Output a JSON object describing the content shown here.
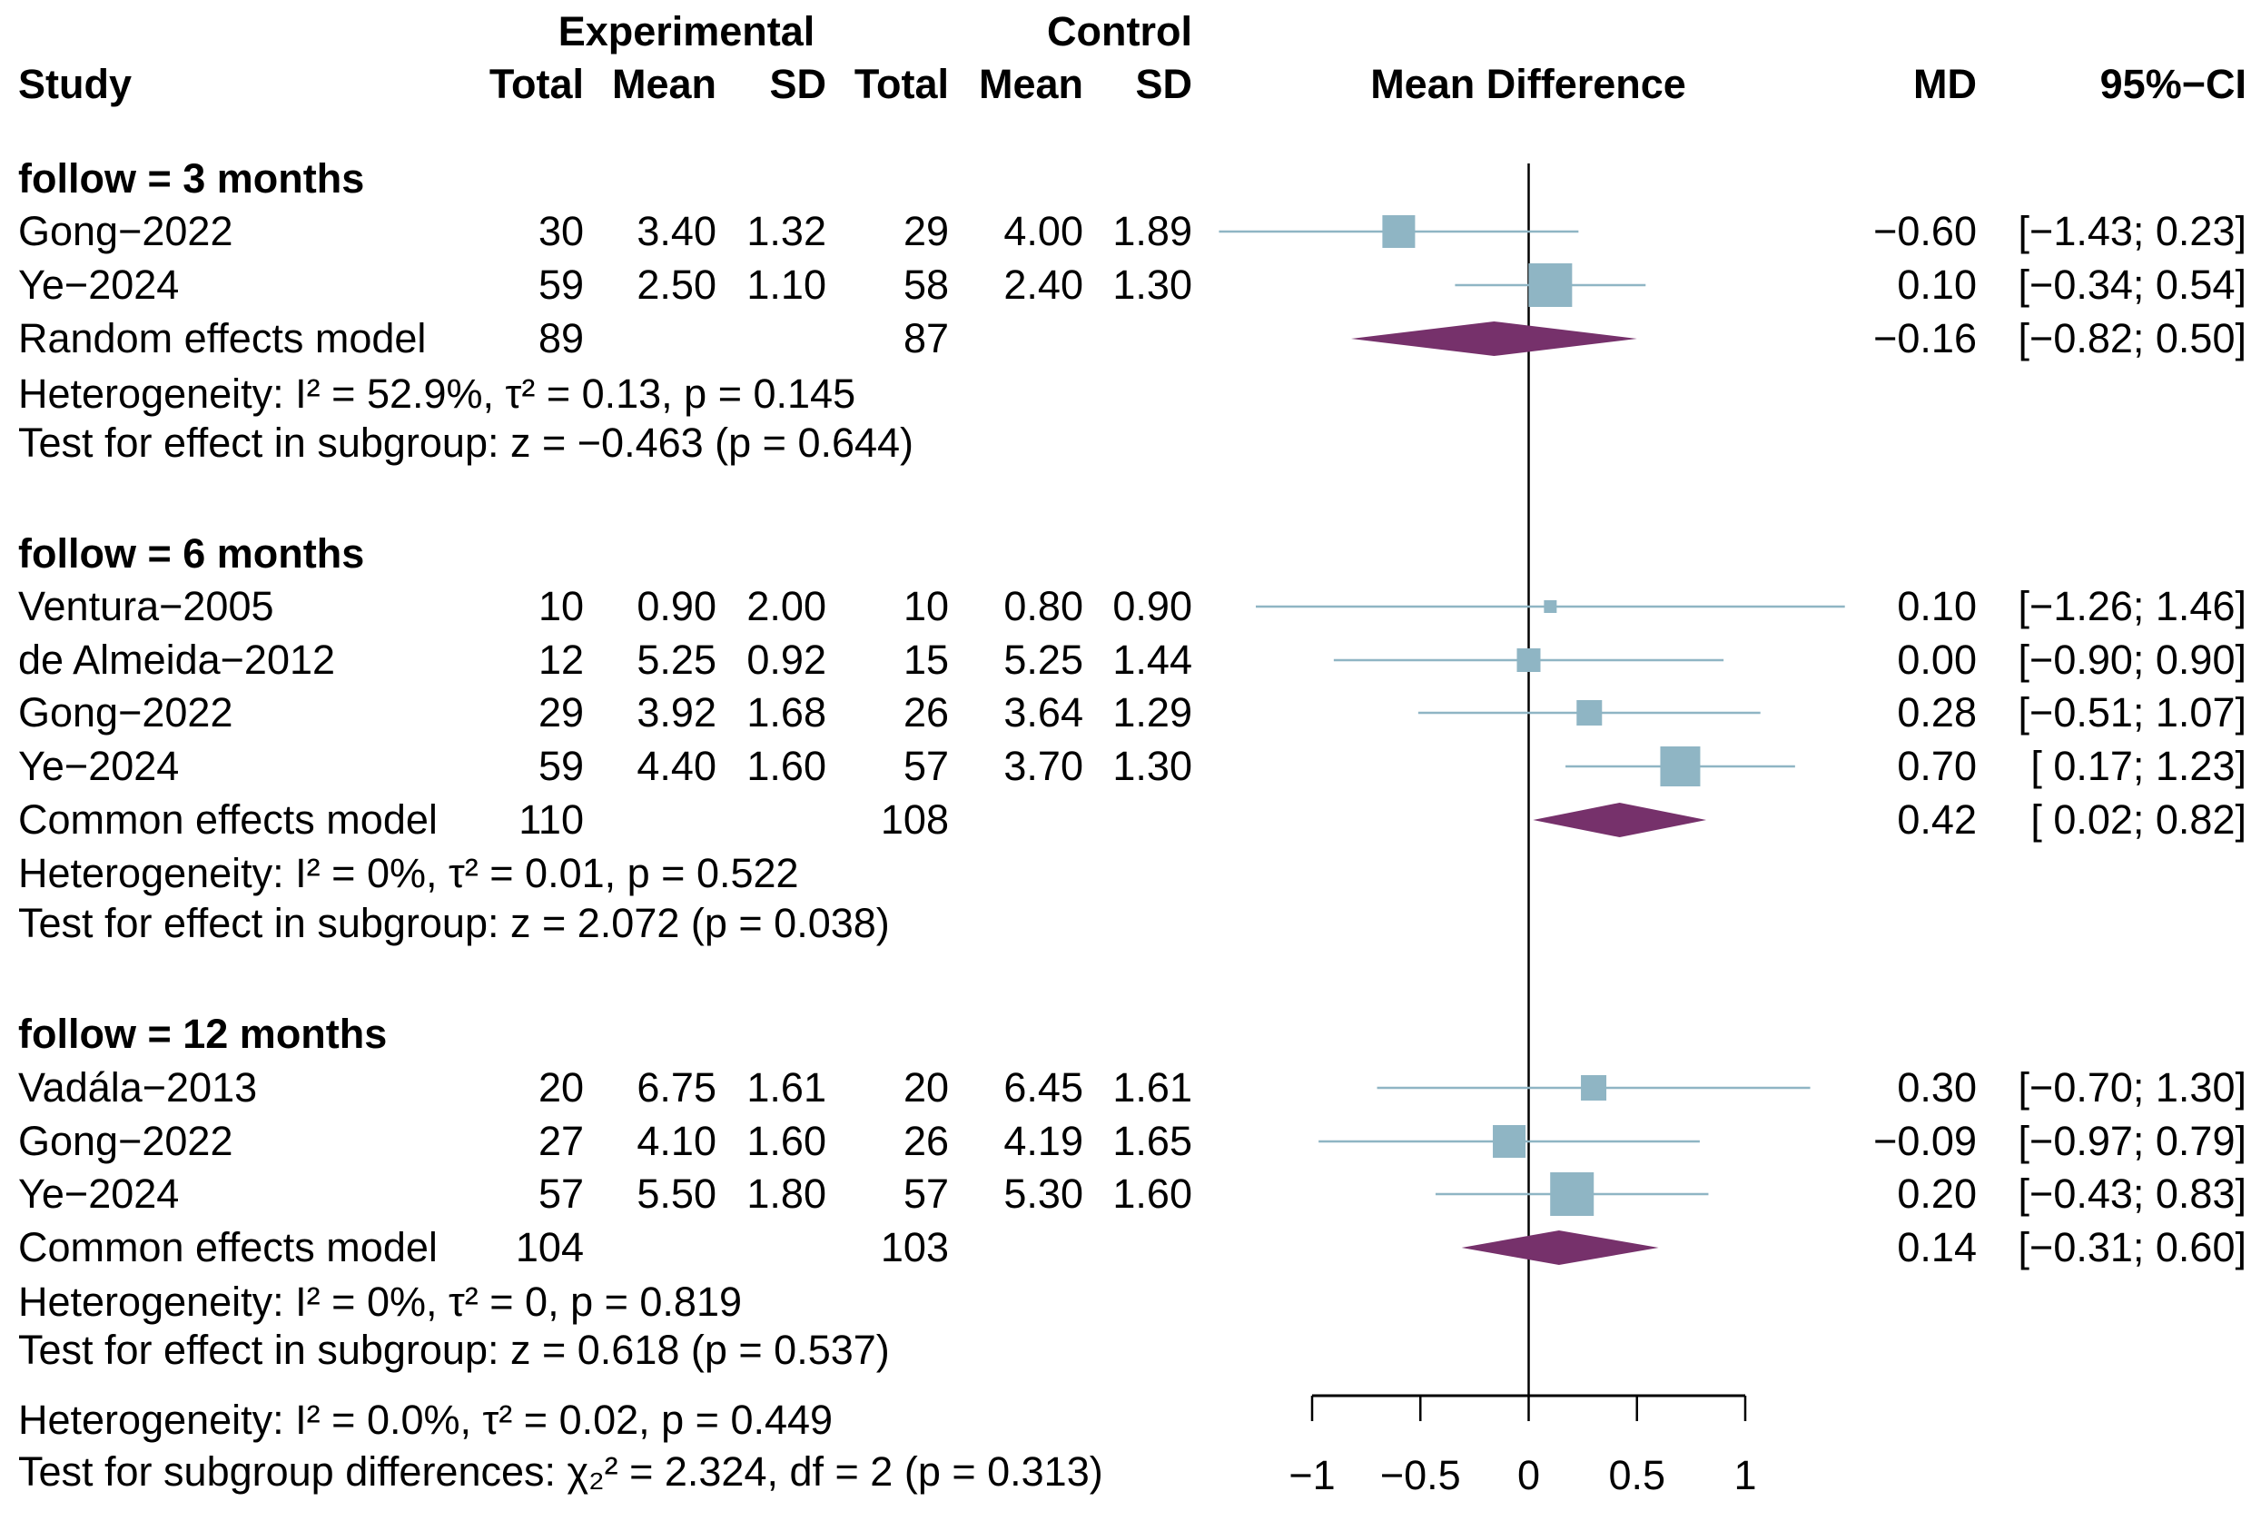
{
  "chart_data": {
    "type": "forest",
    "headers": {
      "study": "Study",
      "experimental": "Experimental",
      "control": "Control",
      "total": "Total",
      "mean": "Mean",
      "sd": "SD",
      "effect": "Mean Difference",
      "md": "MD",
      "ci": "95%−CI"
    },
    "xaxis": {
      "ticks": [
        -1,
        -0.5,
        0,
        0.5,
        1
      ],
      "tick_labels": [
        "−1",
        "−0.5",
        "0",
        "0.5",
        "1"
      ],
      "xlim": [
        -1,
        1
      ]
    },
    "colors": {
      "study": "#8fb5c4",
      "diamond": "#76316b",
      "line": "#8fb5c4"
    },
    "subgroups": [
      {
        "label": "follow = 3 months",
        "studies": [
          {
            "name": "Gong−2022",
            "e_total": "30",
            "e_mean": "3.40",
            "e_sd": "1.32",
            "c_total": "29",
            "c_mean": "4.00",
            "c_sd": "1.89",
            "md": -0.6,
            "lo": -1.43,
            "hi": 0.23,
            "md_text": "−0.60",
            "ci_text": "[−1.43; 0.23]"
          },
          {
            "name": "Ye−2024",
            "e_total": "59",
            "e_mean": "2.50",
            "e_sd": "1.10",
            "c_total": "58",
            "c_mean": "2.40",
            "c_sd": "1.30",
            "md": 0.1,
            "lo": -0.34,
            "hi": 0.54,
            "md_text": "0.10",
            "ci_text": "[−0.34; 0.54]"
          }
        ],
        "model": {
          "name": "Random effects model",
          "e_total": "89",
          "c_total": "87",
          "md": -0.16,
          "lo": -0.82,
          "hi": 0.5,
          "md_text": "−0.16",
          "ci_text": "[−0.82; 0.50]"
        },
        "heterogeneity": "Heterogeneity: I² = 52.9%,  τ² = 0.13, p = 0.145",
        "test": "Test for effect in subgroup: z = −0.463 (p = 0.644)"
      },
      {
        "label": "follow = 6 months",
        "studies": [
          {
            "name": "Ventura−2005",
            "e_total": "10",
            "e_mean": "0.90",
            "e_sd": "2.00",
            "c_total": "10",
            "c_mean": "0.80",
            "c_sd": "0.90",
            "md": 0.1,
            "lo": -1.26,
            "hi": 1.46,
            "md_text": "0.10",
            "ci_text": "[−1.26; 1.46]"
          },
          {
            "name": "de Almeida−2012",
            "e_total": "12",
            "e_mean": "5.25",
            "e_sd": "0.92",
            "c_total": "15",
            "c_mean": "5.25",
            "c_sd": "1.44",
            "md": 0.0,
            "lo": -0.9,
            "hi": 0.9,
            "md_text": "0.00",
            "ci_text": "[−0.90; 0.90]"
          },
          {
            "name": "Gong−2022",
            "e_total": "29",
            "e_mean": "3.92",
            "e_sd": "1.68",
            "c_total": "26",
            "c_mean": "3.64",
            "c_sd": "1.29",
            "md": 0.28,
            "lo": -0.51,
            "hi": 1.07,
            "md_text": "0.28",
            "ci_text": "[−0.51; 1.07]"
          },
          {
            "name": "Ye−2024",
            "e_total": "59",
            "e_mean": "4.40",
            "e_sd": "1.60",
            "c_total": "57",
            "c_mean": "3.70",
            "c_sd": "1.30",
            "md": 0.7,
            "lo": 0.17,
            "hi": 1.23,
            "md_text": "0.70",
            "ci_text": "[ 0.17; 1.23]"
          }
        ],
        "model": {
          "name": "Common effects model",
          "e_total": "110",
          "c_total": "108",
          "md": 0.42,
          "lo": 0.02,
          "hi": 0.82,
          "md_text": "0.42",
          "ci_text": "[ 0.02; 0.82]"
        },
        "heterogeneity": "Heterogeneity: I² = 0%,  τ² = 0.01, p = 0.522",
        "test": "Test for effect in subgroup: z = 2.072 (p = 0.038)"
      },
      {
        "label": "follow = 12 months",
        "studies": [
          {
            "name": "Vadála−2013",
            "e_total": "20",
            "e_mean": "6.75",
            "e_sd": "1.61",
            "c_total": "20",
            "c_mean": "6.45",
            "c_sd": "1.61",
            "md": 0.3,
            "lo": -0.7,
            "hi": 1.3,
            "md_text": "0.30",
            "ci_text": "[−0.70; 1.30]"
          },
          {
            "name": "Gong−2022",
            "e_total": "27",
            "e_mean": "4.10",
            "e_sd": "1.60",
            "c_total": "26",
            "c_mean": "4.19",
            "c_sd": "1.65",
            "md": -0.09,
            "lo": -0.97,
            "hi": 0.79,
            "md_text": "−0.09",
            "ci_text": "[−0.97; 0.79]"
          },
          {
            "name": "Ye−2024",
            "e_total": "57",
            "e_mean": "5.50",
            "e_sd": "1.80",
            "c_total": "57",
            "c_mean": "5.30",
            "c_sd": "1.60",
            "md": 0.2,
            "lo": -0.43,
            "hi": 0.83,
            "md_text": "0.20",
            "ci_text": "[−0.43; 0.83]"
          }
        ],
        "model": {
          "name": "Common effects model",
          "e_total": "104",
          "c_total": "103",
          "md": 0.14,
          "lo": -0.31,
          "hi": 0.6,
          "md_text": "0.14",
          "ci_text": "[−0.31; 0.60]"
        },
        "heterogeneity": "Heterogeneity: I² = 0%,  τ² = 0, p = 0.819",
        "test": "Test for effect in subgroup: z = 0.618 (p = 0.537)"
      }
    ],
    "overall_heterogeneity": "Heterogeneity: I² = 0.0%,  τ² = 0.02, p = 0.449",
    "subgroup_test": "Test for subgroup differences:  χ₂² = 2.324, df = 2 (p = 0.313)"
  }
}
